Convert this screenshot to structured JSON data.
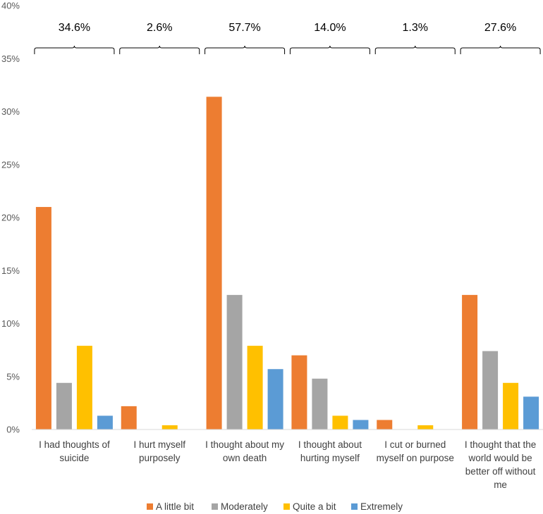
{
  "chart_data": {
    "type": "bar",
    "categories": [
      [
        "I had thoughts of",
        "suicide"
      ],
      [
        "I hurt myself",
        "purposely"
      ],
      [
        "I thought about my",
        "own death"
      ],
      [
        "I thought about",
        "hurting myself"
      ],
      [
        "I cut or burned",
        "myself on purpose"
      ],
      [
        "I thought that the",
        "world would be",
        "better off without",
        "me"
      ]
    ],
    "series": [
      {
        "name": "A little bit",
        "color": "#ED7D31",
        "values": [
          21.0,
          2.2,
          31.4,
          7.0,
          0.9,
          12.7
        ]
      },
      {
        "name": "Moderately",
        "color": "#A5A5A5",
        "values": [
          4.4,
          0.0,
          12.7,
          4.8,
          0.0,
          7.4
        ]
      },
      {
        "name": "Quite a bit",
        "color": "#FFC000",
        "values": [
          7.9,
          0.4,
          7.9,
          1.3,
          0.4,
          4.4
        ]
      },
      {
        "name": "Extremely",
        "color": "#5B9BD5",
        "values": [
          1.3,
          0.0,
          5.7,
          0.9,
          0.0,
          3.1
        ]
      }
    ],
    "totals": [
      "34.6%",
      "2.6%",
      "57.7%",
      "14.0%",
      "1.3%",
      "27.6%"
    ],
    "ylim": [
      0,
      40
    ],
    "yticks": [
      "0%",
      "5%",
      "10%",
      "15%",
      "20%",
      "25%",
      "30%",
      "35%",
      "40%"
    ],
    "legend_position": "bottom",
    "grid": false
  }
}
